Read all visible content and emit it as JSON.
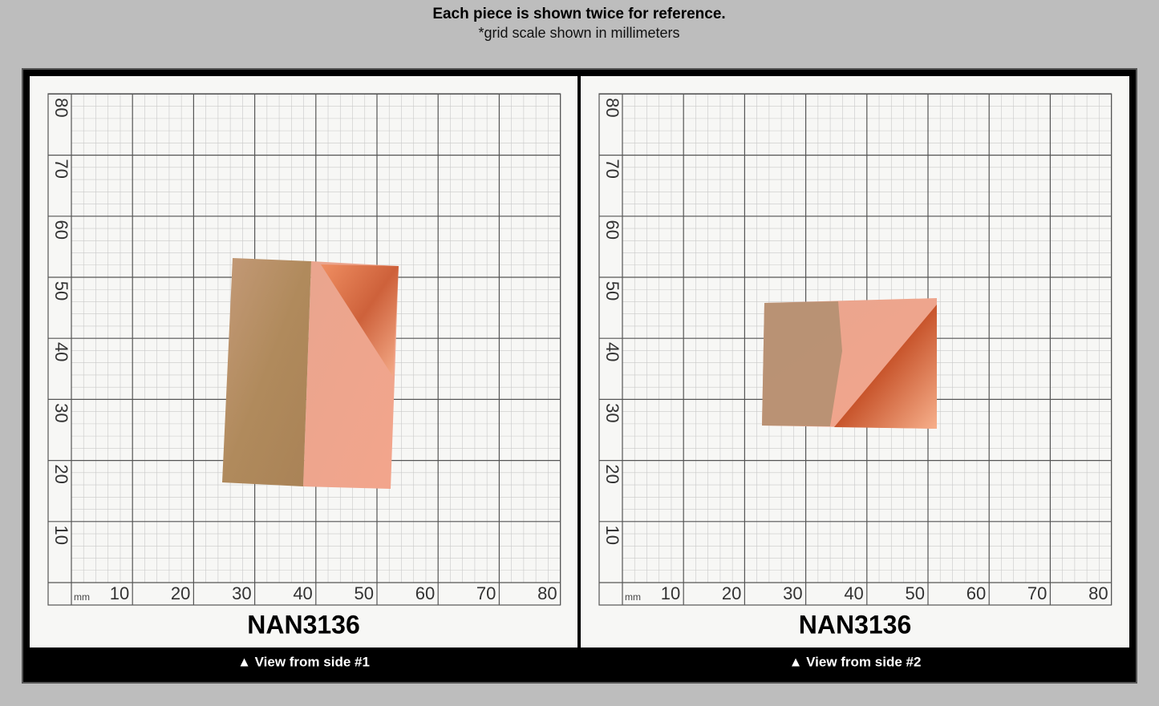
{
  "header": {
    "title": "Each piece is shown twice for reference.",
    "subtitle": "*grid scale shown in millimeters"
  },
  "panels": [
    {
      "unit": "mm",
      "x_labels": [
        10,
        20,
        30,
        40,
        50,
        60,
        70,
        80
      ],
      "y_labels": [
        10,
        20,
        30,
        40,
        50,
        60,
        70,
        80
      ],
      "sku": "NAN3136",
      "caption": "▲ View from side #1"
    },
    {
      "unit": "mm",
      "x_labels": [
        10,
        20,
        30,
        40,
        50,
        60,
        70,
        80
      ],
      "y_labels": [
        10,
        20,
        30,
        40,
        50,
        60,
        70,
        80
      ],
      "sku": "NAN3136",
      "caption": "▲ View from side #2"
    }
  ]
}
